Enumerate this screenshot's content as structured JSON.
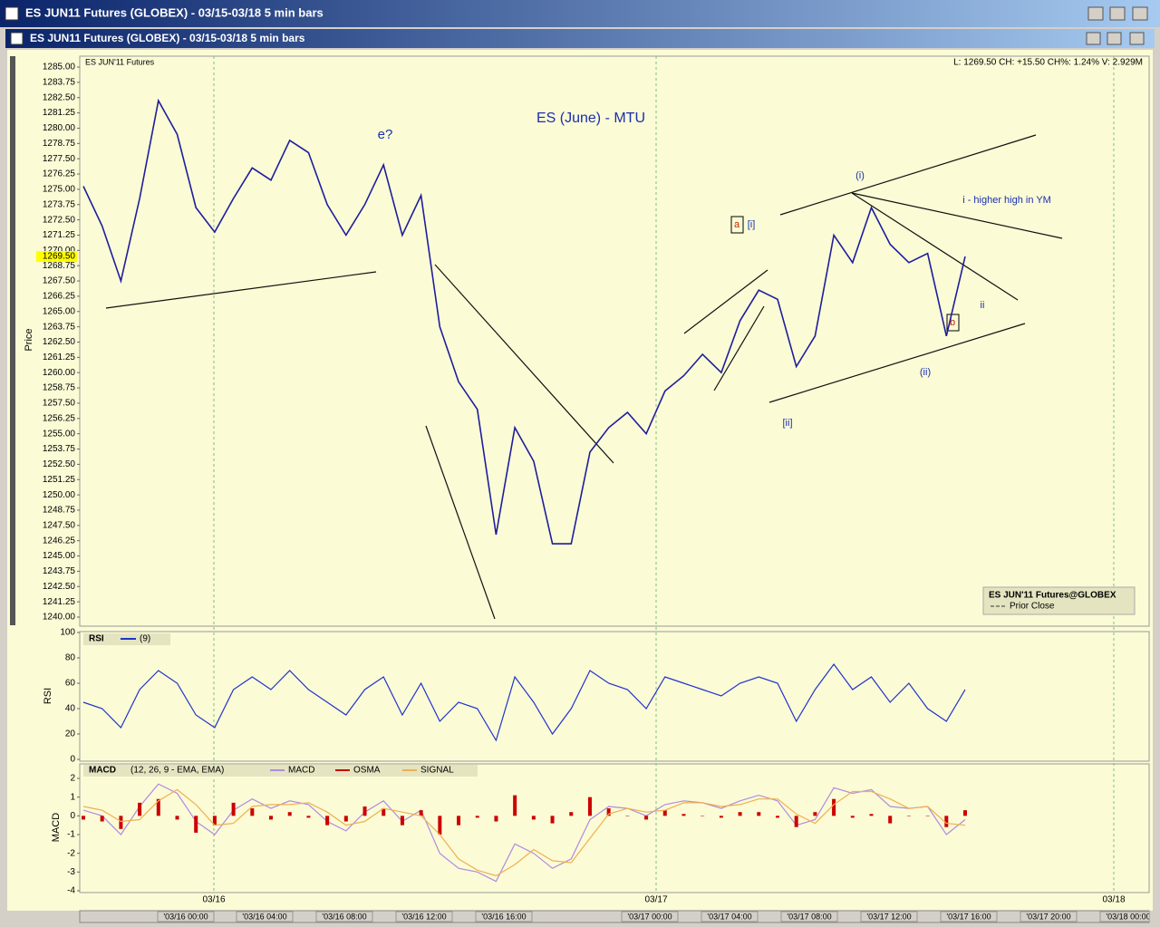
{
  "outer_title": "ES JUN11 Futures (GLOBEX) - 03/15-03/18  5 min bars",
  "inner_title": "ES JUN11 Futures (GLOBEX) - 03/15-03/18  5 min bars",
  "time_axis": {
    "dates": [
      "03/16",
      "03/17",
      "03/18"
    ],
    "times": [
      "'03/16 00:00",
      "'03/16 04:00",
      "'03/16 08:00",
      "'03/16 12:00",
      "'03/16 16:00",
      "'03/17 00:00",
      "'03/17 04:00",
      "'03/17 08:00",
      "'03/17 12:00",
      "'03/17 16:00",
      "'03/17 20:00",
      "'03/18 00:00"
    ]
  },
  "chart_data": [
    {
      "type": "line",
      "title": "ES (June) - MTU",
      "symbol": "ES JUN'11 Futures",
      "status": "L: 1269.50 CH: +15.50 CH%: 1.24% V: 2.929M",
      "ylabel": "Price",
      "x": [
        "03/15 17:00",
        "03/15 18:00",
        "03/15 19:00",
        "03/15 20:00",
        "03/15 21:00",
        "03/15 22:00",
        "03/15 23:00",
        "03/16 00:00",
        "03/16 01:00",
        "03/16 02:00",
        "03/16 03:00",
        "03/16 04:00",
        "03/16 05:00",
        "03/16 06:00",
        "03/16 07:00",
        "03/16 08:00",
        "03/16 09:00",
        "03/16 10:00",
        "03/16 11:00",
        "03/16 12:00",
        "03/16 13:00",
        "03/16 14:00",
        "03/16 15:00",
        "03/16 16:00",
        "03/16 17:00",
        "03/16 18:00",
        "03/16 19:00",
        "03/16 20:00",
        "03/16 21:00",
        "03/16 22:00",
        "03/16 23:00",
        "03/17 00:00",
        "03/17 01:00",
        "03/17 02:00",
        "03/17 03:00",
        "03/17 04:00",
        "03/17 05:00",
        "03/17 06:00",
        "03/17 07:00",
        "03/17 08:00",
        "03/17 09:00",
        "03/17 10:00",
        "03/17 11:00",
        "03/17 12:00",
        "03/17 13:00",
        "03/17 14:00",
        "03/17 15:00",
        "03/17 16:00"
      ],
      "series": [
        {
          "name": "ES JUN'11 Futures@GLOBEX",
          "color": "#1e1e9c",
          "values": [
            1275.25,
            1272,
            1267.5,
            1274.25,
            1282.25,
            1279.5,
            1273.5,
            1271.5,
            1274.25,
            1276.75,
            1275.75,
            1279,
            1278,
            1273.75,
            1271.25,
            1273.75,
            1277,
            1271.25,
            1274.5,
            1263.75,
            1259.25,
            1257,
            1246.75,
            1255.5,
            1252.75,
            1246,
            1246,
            1253.5,
            1255.5,
            1256.75,
            1255,
            1258.5,
            1259.75,
            1261.5,
            1260,
            1264.25,
            1266.75,
            1266,
            1260.5,
            1263,
            1271.25,
            1269,
            1273.5,
            1270.5,
            1269,
            1269.75,
            1263,
            1269.5
          ]
        }
      ],
      "prior_close_label": "Prior Close",
      "last_price": {
        "value": 1269.5,
        "label": "1269.50"
      },
      "annotations": [
        "e?",
        "(i)",
        "i - higher high in YM",
        "a",
        "[i]",
        "[ii]",
        "b",
        "(ii)",
        "ii"
      ],
      "ylim": [
        1240,
        1285
      ],
      "yticks": [
        {
          "value": 1240,
          "label": "1240.00"
        },
        1241.25,
        {
          "value": 1242.5,
          "label": "1242.50"
        },
        1243.75,
        {
          "value": 1245,
          "label": "1245.00"
        },
        1246.25,
        {
          "value": 1247.5,
          "label": "1247.50"
        },
        1248.75,
        {
          "value": 1250,
          "label": "1250.00"
        },
        1251.25,
        {
          "value": 1252.5,
          "label": "1252.50"
        },
        1253.75,
        {
          "value": 1255,
          "label": "1255.00"
        },
        1256.25,
        {
          "value": 1257.5,
          "label": "1257.50"
        },
        1258.75,
        {
          "value": 1260,
          "label": "1260.00"
        },
        1261.25,
        {
          "value": 1262.5,
          "label": "1262.50"
        },
        1263.75,
        {
          "value": 1265,
          "label": "1265.00"
        },
        1266.25,
        {
          "value": 1267.5,
          "label": "1267.50"
        },
        1268.75,
        {
          "value": 1270,
          "label": "1270.00"
        },
        1271.25,
        {
          "value": 1272.5,
          "label": "1272.50"
        },
        1273.75,
        {
          "value": 1275,
          "label": "1275.00"
        },
        1276.25,
        {
          "value": 1277.5,
          "label": "1277.50"
        },
        1278.75,
        {
          "value": 1280,
          "label": "1280.00"
        },
        1281.25,
        {
          "value": 1282.5,
          "label": "1282.50"
        },
        1283.75,
        {
          "value": 1285,
          "label": "1285.00"
        }
      ]
    },
    {
      "type": "line",
      "ylabel": "RSI",
      "legend_label": "RSI",
      "series": [
        {
          "name": "(9)",
          "color": "#2233cc",
          "values": [
            45,
            40,
            25,
            55,
            70,
            60,
            35,
            25,
            55,
            65,
            55,
            70,
            55,
            45,
            35,
            55,
            65,
            35,
            60,
            30,
            45,
            40,
            15,
            65,
            45,
            20,
            40,
            70,
            60,
            55,
            40,
            65,
            60,
            55,
            50,
            60,
            65,
            60,
            30,
            55,
            75,
            55,
            65,
            45,
            60,
            40,
            30,
            55
          ]
        }
      ],
      "ylim": [
        0,
        100
      ],
      "yticks": [
        0,
        20,
        40,
        60,
        80,
        100
      ]
    },
    {
      "type": "line",
      "ylabel": "MACD",
      "legend_label": "MACD",
      "params": "(12, 26, 9 - EMA, EMA)",
      "series": [
        {
          "name": "MACD",
          "color": "#b08ce0",
          "values": [
            0.3,
            0,
            -1,
            0.5,
            1.7,
            1.2,
            -0.3,
            -1,
            0.3,
            0.9,
            0.4,
            0.8,
            0.6,
            -0.3,
            -0.8,
            0.2,
            0.8,
            -0.3,
            0.3,
            -2,
            -2.8,
            -3,
            -3.5,
            -1.5,
            -2,
            -2.8,
            -2.3,
            -0.2,
            0.5,
            0.4,
            0,
            0.6,
            0.8,
            0.7,
            0.4,
            0.8,
            1.1,
            0.8,
            -0.5,
            -0.2,
            1.5,
            1.2,
            1.4,
            0.5,
            0.4,
            0.5,
            -1,
            -0.2
          ]
        },
        {
          "name": "OSMA",
          "color": "#cc0000",
          "type": "bar",
          "values": [
            -0.2,
            -0.3,
            -0.7,
            0.7,
            0.9,
            -0.2,
            -0.9,
            -0.5,
            0.7,
            0.4,
            -0.2,
            0.2,
            -0.1,
            -0.5,
            -0.3,
            0.5,
            0.4,
            -0.5,
            0.3,
            -1,
            -0.5,
            -0.1,
            -0.3,
            1.1,
            -0.2,
            -0.4,
            0.2,
            1,
            0.4,
            0,
            -0.2,
            0.3,
            0.1,
            0,
            -0.1,
            0.2,
            0.2,
            -0.1,
            -0.6,
            0.2,
            0.9,
            -0.1,
            0.1,
            -0.4,
            0,
            0,
            -0.6,
            0.3
          ]
        },
        {
          "name": "SIGNAL",
          "color": "#f0b050",
          "values": [
            0.5,
            0.3,
            -0.3,
            -0.2,
            0.8,
            1.4,
            0.6,
            -0.5,
            -0.4,
            0.5,
            0.6,
            0.6,
            0.7,
            0.2,
            -0.5,
            -0.3,
            0.4,
            0.2,
            0,
            -1,
            -2.3,
            -2.9,
            -3.2,
            -2.6,
            -1.8,
            -2.4,
            -2.5,
            -1.2,
            0.1,
            0.4,
            0.2,
            0.3,
            0.7,
            0.7,
            0.5,
            0.6,
            0.9,
            0.9,
            0.1,
            -0.4,
            0.6,
            1.3,
            1.3,
            0.9,
            0.4,
            0.5,
            -0.4,
            -0.5
          ]
        }
      ],
      "ylim": [
        -4,
        2
      ],
      "yticks": [
        -4,
        -3,
        -2,
        -1,
        0,
        1,
        2
      ]
    }
  ]
}
